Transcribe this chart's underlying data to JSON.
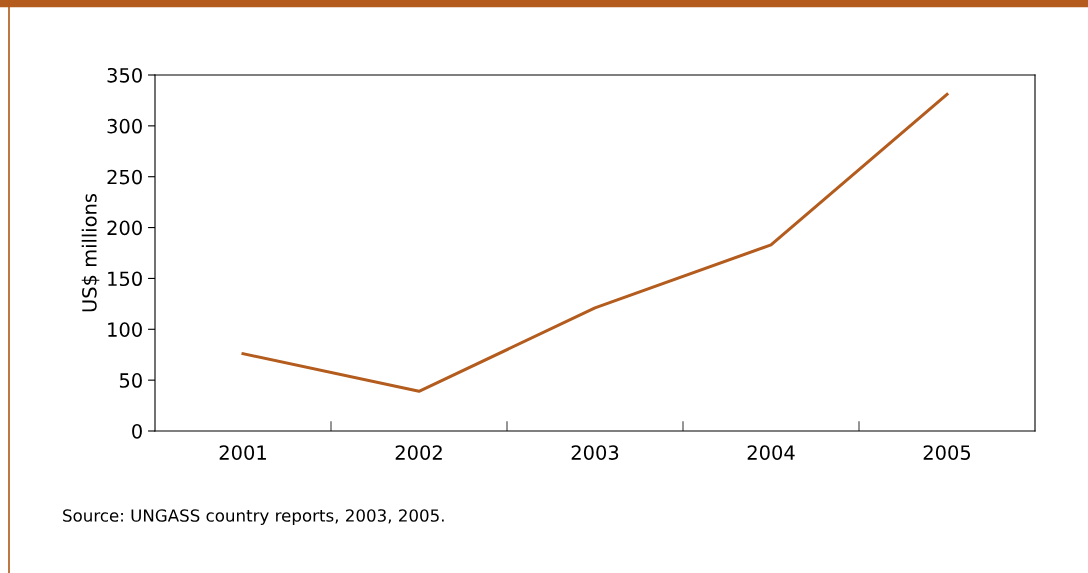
{
  "chart_data": {
    "type": "line",
    "ylabel": "US$ millions",
    "categories": [
      "2001",
      "2002",
      "2003",
      "2004",
      "2005"
    ],
    "series": [
      {
        "color": "#b35c1e",
        "values": [
          76,
          39,
          121,
          183,
          331
        ]
      }
    ],
    "ylim": [
      0,
      350
    ],
    "yticks": [
      0,
      50,
      100,
      150,
      200,
      250,
      300,
      350
    ],
    "grid": false,
    "marker": "none",
    "line_style": "solid",
    "annotations": [
      "Source: UNGASS country reports, 2003, 2005."
    ]
  }
}
